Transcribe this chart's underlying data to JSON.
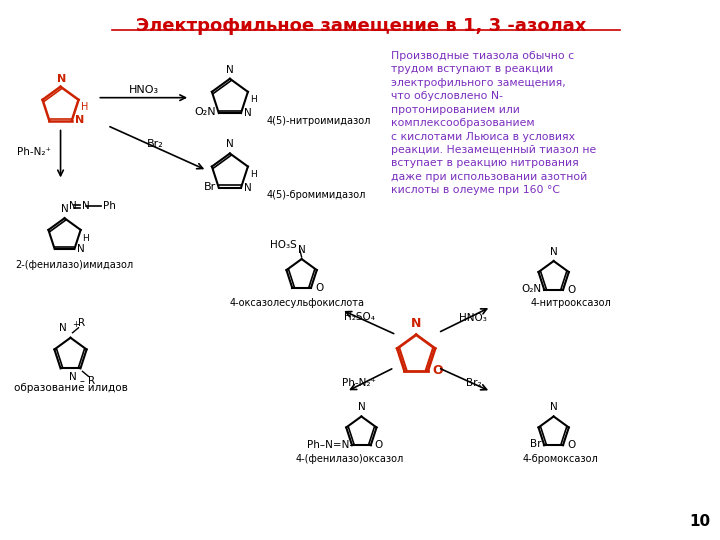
{
  "title": "Электрофильное замещение в 1, 3 -азолах",
  "title_color": "#cc0000",
  "bg_color": "#ffffff",
  "side_text_line1": "Производные тиазола обычно с",
  "side_text_line2": "трудом вступают в реакции",
  "side_text_line3": "электрофильного замещения,",
  "side_text_line4": "что обусловлено N-",
  "side_text_line5": "протонированием или",
  "side_text_line6": "комплексообразованием",
  "side_text_line7": "с кислотами Льюиса в условиях",
  "side_text_line8": "реакции. Незамещенный тиазол не",
  "side_text_line9": "вступает в реакцию нитрования",
  "side_text_line10": "даже при использовании азотной",
  "side_text_line11": "кислоты в олеуме при 160 °C",
  "side_text_color": "#7b2fbe",
  "page_number": "10",
  "label_nitro_imid": "4(5)-нитроимидазол",
  "label_bromo_imid": "4(5)-бромимидазол",
  "label_phenyl_imid": "2-(фенилазо)имидазол",
  "label_ylid": "образование илидов",
  "label_sulfoacid": "4-оксазолесульфокислота",
  "label_nitrooxa": "4-нитрооксазол",
  "label_phenylazooxa": "4-(фенилазо)оксазол",
  "label_bromooxa": "4-бромоксазол",
  "reagent_hno3": "HNO₃",
  "reagent_br2": "Br₂",
  "reagent_phN2": "Ph-N₂⁺",
  "reagent_h2so4": "H₂SO₄",
  "reagent_hno3_2": "HNO₃",
  "reagent_phN2_2": "Ph-N₂⁺",
  "reagent_br2_2": "Br₂"
}
